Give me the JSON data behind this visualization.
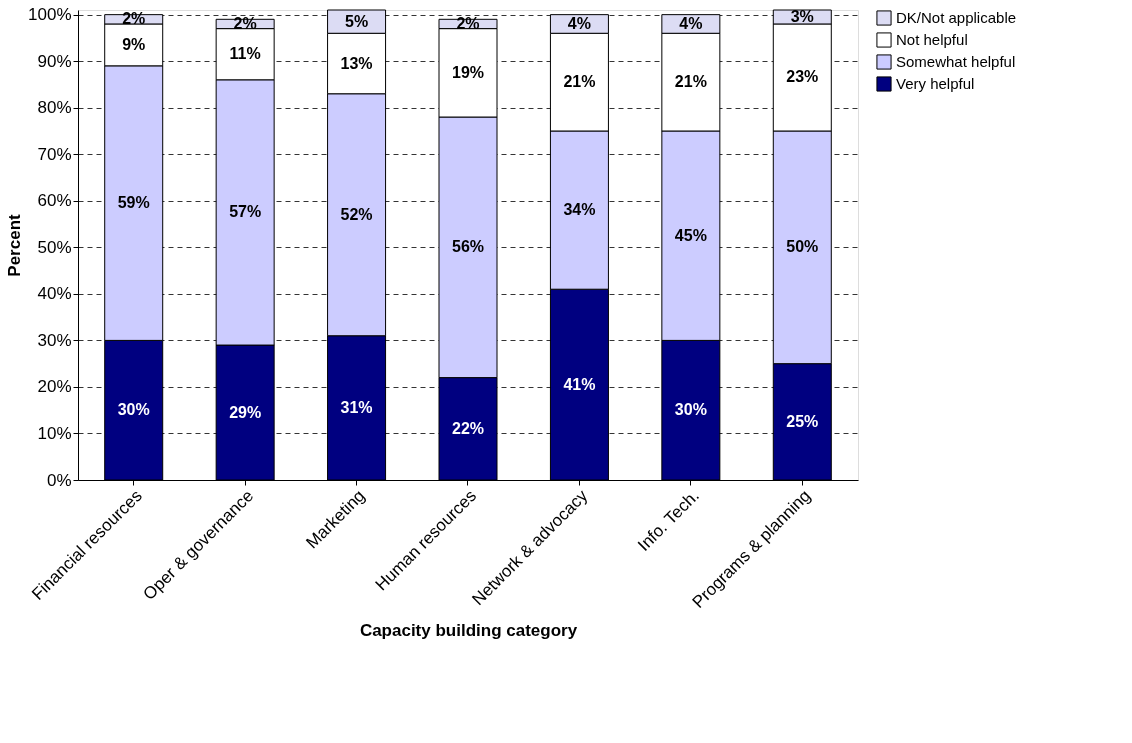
{
  "chart_data": {
    "type": "bar",
    "stacked": true,
    "xlabel": "Capacity building category",
    "ylabel": "Percent",
    "categories": [
      "Financial resources",
      "Oper & governance",
      "Marketing",
      "Human resources",
      "Network & advocacy",
      "Info. Tech.",
      "Programs & planning"
    ],
    "series": [
      {
        "name": "Very helpful",
        "color": "#000080",
        "values": [
          30,
          29,
          31,
          22,
          41,
          30,
          25
        ],
        "value_labels": [
          "30%",
          "29%",
          "31%",
          "22%",
          "41%",
          "30%",
          "25%"
        ]
      },
      {
        "name": "Somewhat helpful",
        "color": "#ccccff",
        "values": [
          59,
          57,
          52,
          56,
          34,
          45,
          50
        ],
        "value_labels": [
          "59%",
          "57%",
          "52%",
          "56%",
          "34%",
          "45%",
          "50%"
        ]
      },
      {
        "name": "Not helpful",
        "color": "#ffffff",
        "values": [
          9,
          11,
          13,
          19,
          21,
          21,
          23
        ],
        "value_labels": [
          "9%",
          "11%",
          "13%",
          "19%",
          "21%",
          "21%",
          "23%"
        ]
      },
      {
        "name": "DK/Not applicable",
        "color": "#dcdcf4",
        "values": [
          2,
          2,
          5,
          2,
          4,
          4,
          3
        ],
        "value_labels": [
          "2%",
          "2%",
          "5%",
          "2%",
          "4%",
          "4%",
          "3%"
        ]
      }
    ],
    "ylim": [
      0,
      101
    ],
    "yticks": [
      {
        "value": 0,
        "label": "0%"
      },
      {
        "value": 10,
        "label": "10%"
      },
      {
        "value": 20,
        "label": "20%"
      },
      {
        "value": 30,
        "label": "30%"
      },
      {
        "value": 40,
        "label": "40%"
      },
      {
        "value": 50,
        "label": "50%"
      },
      {
        "value": 60,
        "label": "60%"
      },
      {
        "value": 70,
        "label": "70%"
      },
      {
        "value": 80,
        "label": "80%"
      },
      {
        "value": 90,
        "label": "90%"
      },
      {
        "value": 100,
        "label": "100%"
      }
    ],
    "grid": "y",
    "legend": "right"
  }
}
